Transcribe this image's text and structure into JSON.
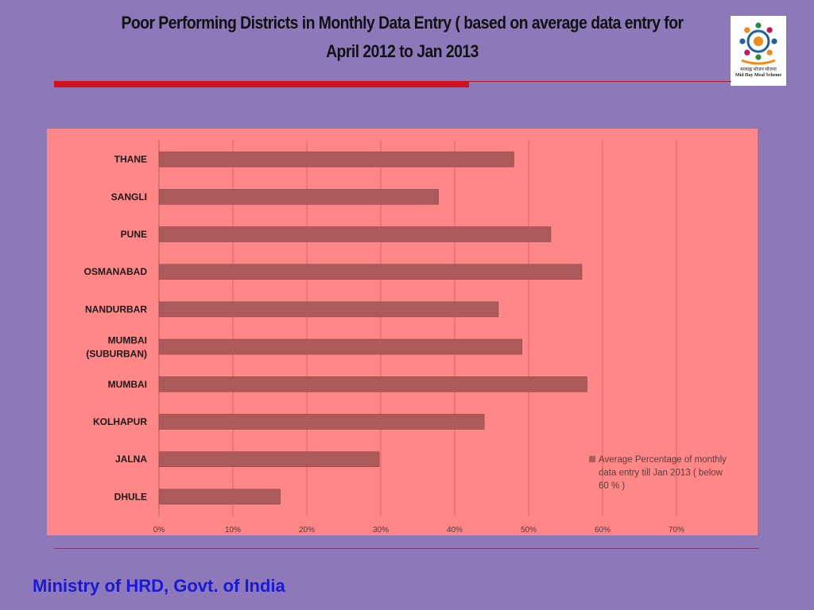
{
  "slide": {
    "title_line1": "Poor Performing Districts in Monthly Data Entry ( based on average data entry for",
    "title_line2": "April 2012 to Jan 2013",
    "footer": "Ministry of HRD, Govt. of India"
  },
  "logo": {
    "icon": "mid-day-meal-scheme-logo",
    "text_hindi": "मध्याह्न भोजन योजना",
    "text_english": "Mid Day Meal Scheme"
  },
  "colors": {
    "background": "#8d78ba",
    "chart_area": "#ff8787",
    "bar": "#ac5a5a",
    "accent_red": "#d1121d",
    "footer_text": "#1a1ad6"
  },
  "chart_data": {
    "type": "bar",
    "orientation": "horizontal",
    "categories": [
      "THANE",
      "SANGLI",
      "PUNE",
      "OSMANABAD",
      "NANDURBAR",
      "MUMBAI (SUBURBAN)",
      "MUMBAI",
      "KOLHAPUR",
      "JALNA",
      "DHULE"
    ],
    "series": [
      {
        "name": "Average Percentage of monthly data entry till Jan 2013 ( below 60 % )",
        "values": [
          48,
          37.8,
          53,
          57.2,
          45.9,
          49.1,
          57.9,
          44,
          29.8,
          16.4
        ]
      }
    ],
    "xlim": [
      0,
      70
    ],
    "xticks": [
      "0%",
      "10%",
      "20%",
      "30%",
      "40%",
      "50%",
      "60%",
      "70%"
    ],
    "grid": "vertical",
    "legend_position": "right"
  }
}
